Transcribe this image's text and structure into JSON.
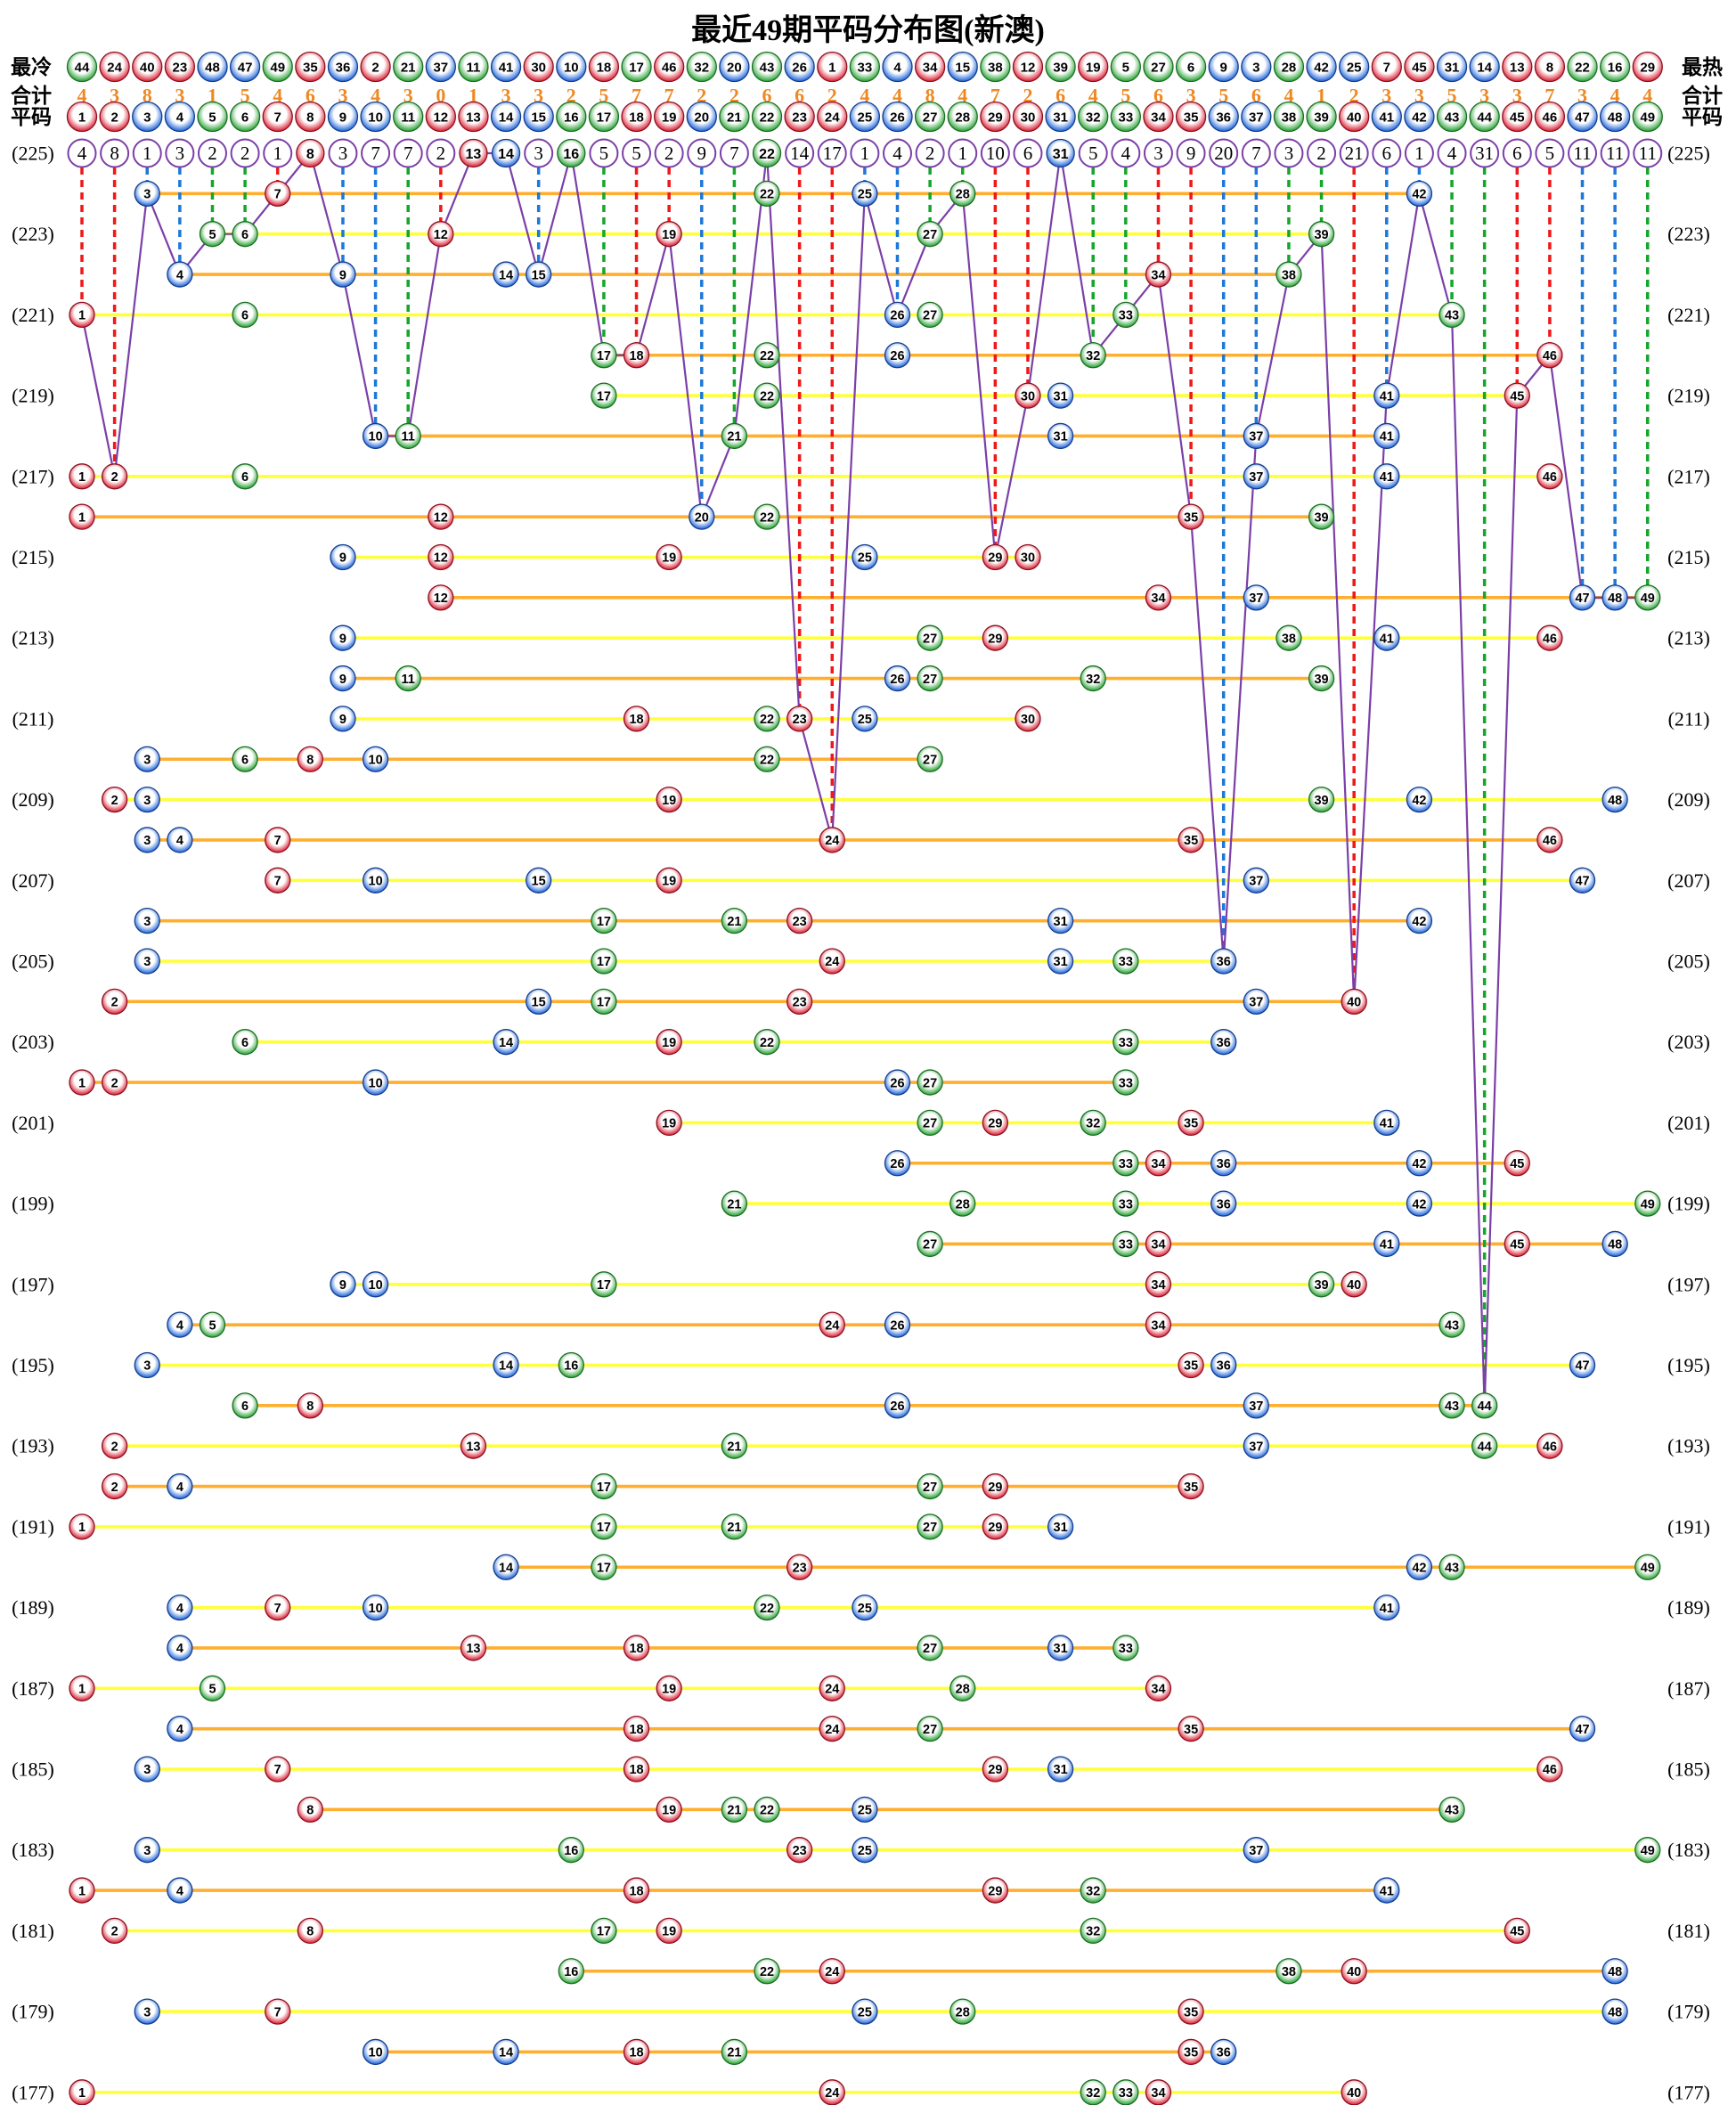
{
  "title": "最近49期平码分布图(新澳)",
  "header": {
    "cold_label": "最冷",
    "hot_label": "最热",
    "total_label": "合计",
    "pingma_label": "平码",
    "cold_sequence": [
      44,
      24,
      40,
      23,
      48,
      47,
      49,
      35,
      36,
      2,
      21,
      37,
      11,
      41,
      30,
      10,
      18,
      17,
      46,
      32,
      20,
      43,
      26,
      1,
      33,
      4,
      34,
      15,
      38,
      12,
      39,
      19,
      5,
      27,
      6,
      9,
      3,
      28,
      42,
      25,
      7,
      45,
      31,
      14,
      13,
      8,
      22,
      16,
      29
    ],
    "totals": [
      4,
      3,
      8,
      3,
      1,
      5,
      4,
      6,
      3,
      4,
      3,
      0,
      1,
      3,
      3,
      2,
      5,
      7,
      7,
      2,
      2,
      6,
      6,
      2,
      4,
      4,
      8,
      4,
      7,
      2,
      6,
      4,
      5,
      6,
      3,
      5,
      6,
      4,
      1,
      2,
      3,
      3,
      5,
      3,
      3,
      7,
      3,
      4,
      4
    ],
    "pingma_numbers": [
      1,
      2,
      3,
      4,
      5,
      6,
      7,
      8,
      9,
      10,
      11,
      12,
      13,
      14,
      15,
      16,
      17,
      18,
      19,
      20,
      21,
      22,
      23,
      24,
      25,
      26,
      27,
      28,
      29,
      30,
      31,
      32,
      33,
      34,
      35,
      36,
      37,
      38,
      39,
      40,
      41,
      42,
      43,
      44,
      45,
      46,
      47,
      48,
      49
    ]
  },
  "chart_data": {
    "type": "scatter",
    "title": "最近49期平码分布图(新澳)",
    "top_period": 225,
    "bottom_period": 177,
    "top_row_values": [
      4,
      8,
      1,
      3,
      2,
      2,
      1,
      8,
      3,
      7,
      7,
      2,
      13,
      14,
      3,
      16,
      5,
      5,
      2,
      9,
      7,
      22,
      14,
      17,
      1,
      4,
      2,
      1,
      10,
      6,
      31,
      5,
      4,
      3,
      9,
      20,
      7,
      3,
      2,
      21,
      6,
      1,
      4,
      31,
      6,
      5,
      11,
      11,
      11
    ],
    "drawn_in_latest": [
      8,
      13,
      14,
      16,
      22,
      31
    ],
    "rows": [
      {
        "period": 224,
        "balls": [
          3,
          7,
          22,
          25,
          28,
          42
        ]
      },
      {
        "period": 223,
        "balls": [
          5,
          6,
          12,
          19,
          27,
          39
        ]
      },
      {
        "period": 222,
        "balls": [
          4,
          9,
          14,
          15,
          34,
          38
        ]
      },
      {
        "period": 221,
        "balls": [
          1,
          6,
          26,
          27,
          33,
          43
        ]
      },
      {
        "period": 220,
        "balls": [
          17,
          18,
          22,
          26,
          32,
          46
        ]
      },
      {
        "period": 219,
        "balls": [
          17,
          22,
          30,
          31,
          41,
          45
        ]
      },
      {
        "period": 218,
        "balls": [
          10,
          11,
          21,
          31,
          37,
          41
        ]
      },
      {
        "period": 217,
        "balls": [
          1,
          2,
          6,
          37,
          41,
          46
        ]
      },
      {
        "period": 216,
        "balls": [
          1,
          12,
          20,
          22,
          35,
          39
        ]
      },
      {
        "period": 215,
        "balls": [
          9,
          12,
          19,
          25,
          29,
          30
        ]
      },
      {
        "period": 214,
        "balls": [
          12,
          34,
          37,
          47,
          48,
          49
        ]
      },
      {
        "period": 213,
        "balls": [
          9,
          27,
          29,
          38,
          41,
          46
        ]
      },
      {
        "period": 212,
        "balls": [
          9,
          11,
          26,
          27,
          32,
          39
        ]
      },
      {
        "period": 211,
        "balls": [
          9,
          18,
          22,
          23,
          25,
          30
        ]
      },
      {
        "period": 210,
        "balls": [
          3,
          6,
          8,
          10,
          22,
          27
        ]
      },
      {
        "period": 209,
        "balls": [
          2,
          3,
          19,
          39,
          42,
          48
        ]
      },
      {
        "period": 208,
        "balls": [
          3,
          4,
          7,
          24,
          35,
          46
        ]
      },
      {
        "period": 207,
        "balls": [
          7,
          10,
          15,
          19,
          37,
          47
        ]
      },
      {
        "period": 206,
        "balls": [
          3,
          17,
          21,
          23,
          31,
          42
        ]
      },
      {
        "period": 205,
        "balls": [
          3,
          17,
          24,
          31,
          33,
          36
        ]
      },
      {
        "period": 204,
        "balls": [
          2,
          15,
          17,
          23,
          37,
          40
        ]
      },
      {
        "period": 203,
        "balls": [
          6,
          14,
          19,
          22,
          33,
          36
        ]
      },
      {
        "period": 202,
        "balls": [
          1,
          2,
          10,
          26,
          27,
          33
        ]
      },
      {
        "period": 201,
        "balls": [
          19,
          27,
          29,
          32,
          35,
          41
        ]
      },
      {
        "period": 200,
        "balls": [
          26,
          33,
          34,
          36,
          42,
          45
        ]
      },
      {
        "period": 199,
        "balls": [
          21,
          28,
          33,
          36,
          42,
          49
        ]
      },
      {
        "period": 198,
        "balls": [
          27,
          33,
          34,
          41,
          45,
          48
        ]
      },
      {
        "period": 197,
        "balls": [
          9,
          10,
          17,
          34,
          39,
          40
        ]
      },
      {
        "period": 196,
        "balls": [
          4,
          5,
          24,
          26,
          34,
          43
        ]
      },
      {
        "period": 195,
        "balls": [
          3,
          14,
          16,
          35,
          36,
          47
        ]
      },
      {
        "period": 194,
        "balls": [
          6,
          8,
          26,
          37,
          43,
          44
        ]
      },
      {
        "period": 193,
        "balls": [
          2,
          13,
          21,
          37,
          44,
          46
        ]
      },
      {
        "period": 192,
        "balls": [
          2,
          4,
          17,
          27,
          29,
          35
        ]
      },
      {
        "period": 191,
        "balls": [
          1,
          17,
          21,
          27,
          29,
          31
        ]
      },
      {
        "period": 190,
        "balls": [
          14,
          17,
          23,
          42,
          43,
          49
        ]
      },
      {
        "period": 189,
        "balls": [
          4,
          7,
          10,
          22,
          25,
          41
        ]
      },
      {
        "period": 188,
        "balls": [
          4,
          13,
          18,
          27,
          31,
          33
        ]
      },
      {
        "period": 187,
        "balls": [
          1,
          5,
          19,
          24,
          28,
          34
        ]
      },
      {
        "period": 186,
        "balls": [
          4,
          18,
          24,
          27,
          35,
          47
        ]
      },
      {
        "period": 185,
        "balls": [
          3,
          7,
          18,
          29,
          31,
          46
        ]
      },
      {
        "period": 184,
        "balls": [
          8,
          19,
          21,
          22,
          25,
          43
        ]
      },
      {
        "period": 183,
        "balls": [
          3,
          16,
          23,
          25,
          37,
          49
        ]
      },
      {
        "period": 182,
        "balls": [
          1,
          4,
          18,
          29,
          32,
          41
        ]
      },
      {
        "period": 181,
        "balls": [
          2,
          8,
          17,
          19,
          32,
          45
        ]
      },
      {
        "period": 180,
        "balls": [
          16,
          22,
          24,
          38,
          40,
          48
        ]
      },
      {
        "period": 179,
        "balls": [
          3,
          7,
          25,
          28,
          35,
          48
        ]
      },
      {
        "period": 178,
        "balls": [
          10,
          14,
          18,
          21,
          35,
          36
        ]
      },
      {
        "period": 177,
        "balls": [
          1,
          24,
          32,
          33,
          34,
          40
        ]
      }
    ],
    "colors": {
      "red_balls": [
        1,
        2,
        7,
        8,
        12,
        13,
        18,
        19,
        23,
        24,
        29,
        30,
        34,
        35,
        40,
        45,
        46
      ],
      "blue_balls": [
        3,
        4,
        9,
        10,
        14,
        15,
        20,
        25,
        26,
        31,
        36,
        37,
        41,
        42,
        47,
        48
      ],
      "green_balls": [
        5,
        6,
        11,
        16,
        17,
        21,
        22,
        27,
        28,
        32,
        33,
        38,
        39,
        43,
        44,
        49
      ],
      "red": "#D92B3F",
      "blue": "#1E63C8",
      "green": "#2E9E3E",
      "dash_red": "#F01818",
      "dash_blue": "#1E78D8",
      "dash_green": "#16A62C",
      "yellow_line": "#FFFF3C",
      "orange_line": "#FFAE2E",
      "purple": "#7B3FA8",
      "total_text": "#EE8822"
    }
  }
}
